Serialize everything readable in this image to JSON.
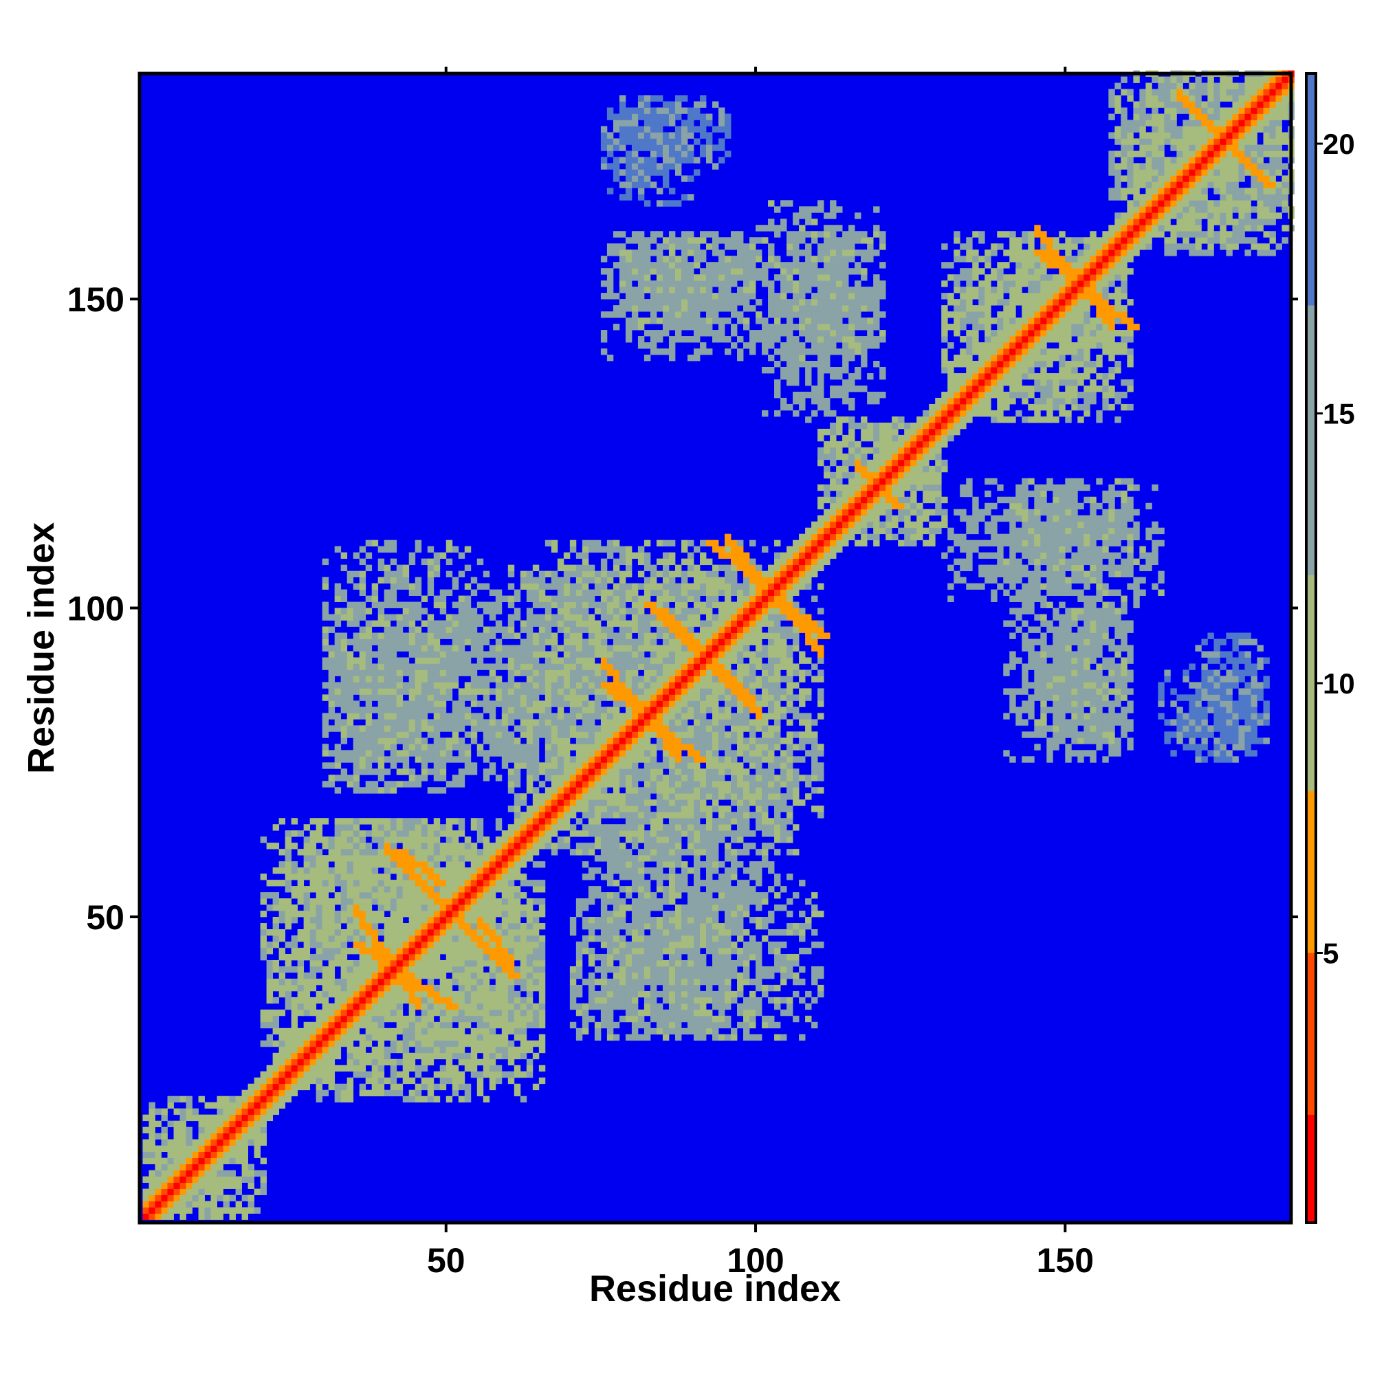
{
  "chart_data": {
    "type": "heatmap",
    "title": "",
    "xlabel": "Residue index",
    "ylabel": "Residue index",
    "xlim": [
      1,
      186
    ],
    "ylim": [
      1,
      186
    ],
    "x_ticks": [
      50,
      100,
      150
    ],
    "y_ticks": [
      50,
      100,
      150
    ],
    "colorbar": {
      "range": [
        0,
        21.3
      ],
      "ticks": [
        5,
        10,
        15,
        20
      ],
      "colors": [
        {
          "from": 0,
          "to": 2,
          "color": "#ff0000"
        },
        {
          "from": 2,
          "to": 5,
          "color": "#ff4a00"
        },
        {
          "from": 5,
          "to": 8,
          "color": "#ff9900"
        },
        {
          "from": 8,
          "to": 12,
          "color": "#a6bc7e"
        },
        {
          "from": 12,
          "to": 17,
          "color": "#8aa3a6"
        },
        {
          "from": 17,
          "to": 21.3,
          "color": "#4f78c9"
        }
      ]
    },
    "background_color": "#0000f0",
    "symmetric": true,
    "diagonal_value": 1.5,
    "contact_regions": [
      {
        "x": [
          1,
          20
        ],
        "y": [
          1,
          20
        ],
        "value": 10
      },
      {
        "x": [
          20,
          65
        ],
        "y": [
          20,
          65
        ],
        "value": 10
      },
      {
        "x": [
          25,
          60
        ],
        "y": [
          50,
          65
        ],
        "value": 11
      },
      {
        "x": [
          30,
          60
        ],
        "y": [
          70,
          100
        ],
        "value": 12
      },
      {
        "x": [
          60,
          110
        ],
        "y": [
          60,
          110
        ],
        "value": 11
      },
      {
        "x": [
          70,
          110
        ],
        "y": [
          30,
          55
        ],
        "value": 12
      },
      {
        "x": [
          70,
          105
        ],
        "y": [
          55,
          75
        ],
        "value": 13
      },
      {
        "x": [
          110,
          130
        ],
        "y": [
          110,
          130
        ],
        "value": 10
      },
      {
        "x": [
          130,
          160
        ],
        "y": [
          130,
          160
        ],
        "value": 10
      },
      {
        "x": [
          157,
          186
        ],
        "y": [
          157,
          186
        ],
        "value": 11
      },
      {
        "x": [
          75,
          100
        ],
        "y": [
          145,
          160
        ],
        "value": 12
      },
      {
        "x": [
          100,
          120
        ],
        "y": [
          130,
          160
        ],
        "value": 13
      },
      {
        "x": [
          75,
          95
        ],
        "y": [
          170,
          182
        ],
        "value": 16
      },
      {
        "x": [
          140,
          160
        ],
        "y": [
          75,
          100
        ],
        "value": 13
      },
      {
        "x": [
          140,
          165
        ],
        "y": [
          100,
          120
        ],
        "value": 12
      },
      {
        "x": [
          165,
          182
        ],
        "y": [
          75,
          90
        ],
        "value": 17
      }
    ],
    "strong_contacts": [
      {
        "x": [
          35,
          50
        ],
        "y": [
          45,
          35
        ],
        "value": 6
      },
      {
        "x": [
          50,
          60
        ],
        "y": [
          50,
          40
        ],
        "value": 6
      },
      {
        "x": [
          42,
          48
        ],
        "y": [
          60,
          55
        ],
        "value": 6
      },
      {
        "x": [
          75,
          90
        ],
        "y": [
          87,
          75
        ],
        "value": 6
      },
      {
        "x": [
          82,
          98
        ],
        "y": [
          100,
          85
        ],
        "value": 6
      },
      {
        "x": [
          92,
          110
        ],
        "y": [
          110,
          95
        ],
        "value": 6
      },
      {
        "x": [
          145,
          160
        ],
        "y": [
          157,
          145
        ],
        "value": 6
      },
      {
        "x": [
          168,
          182
        ],
        "y": [
          182,
          168
        ],
        "value": 6
      },
      {
        "x": [
          118,
          122
        ],
        "y": [
          120,
          116
        ],
        "value": 6
      }
    ]
  }
}
